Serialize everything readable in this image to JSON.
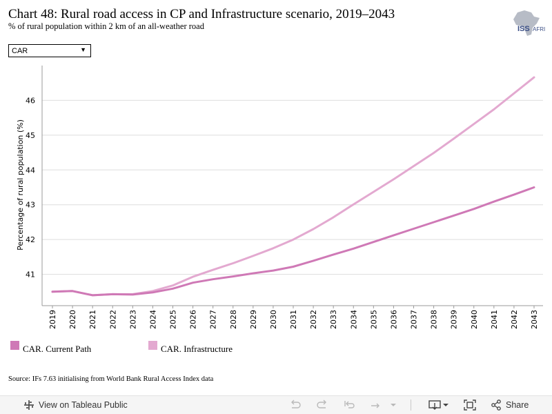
{
  "header": {
    "title": "Chart 48: Rural road access in CP and Infrastructure scenario, 2019–2043",
    "subtitle": "% of rural population within 2 km of an all-weather road",
    "logo_text": "ISS AFRICA"
  },
  "filter": {
    "selected": "CAR"
  },
  "colors": {
    "current_path": "#cf79b6",
    "infrastructure": "#e3a9d0",
    "grid": "#dedede",
    "axis": "#9a9a9a"
  },
  "chart_data": {
    "type": "line",
    "title": "Chart 48: Rural road access in CP and Infrastructure scenario, 2019–2043",
    "xlabel": "",
    "ylabel": "Percentage of rural population (%)",
    "ylim": [
      40.1,
      47.0
    ],
    "yticks": [
      41,
      42,
      43,
      44,
      45,
      46
    ],
    "grid": true,
    "legend_position": "bottom-left",
    "x": [
      "2019",
      "2020",
      "2021",
      "2022",
      "2023",
      "2024",
      "2025",
      "2026",
      "2027",
      "2028",
      "2029",
      "2030",
      "2031",
      "2032",
      "2033",
      "2034",
      "2035",
      "2036",
      "2037",
      "2038",
      "2039",
      "2040",
      "2041",
      "2042",
      "2043"
    ],
    "series": [
      {
        "name": "CAR. Current Path",
        "color": "#cf79b6",
        "values": [
          40.5,
          40.52,
          40.4,
          40.43,
          40.42,
          40.48,
          40.59,
          40.76,
          40.86,
          40.94,
          41.03,
          41.11,
          41.22,
          41.39,
          41.57,
          41.74,
          41.93,
          42.12,
          42.31,
          42.5,
          42.69,
          42.88,
          43.09,
          43.29,
          43.5
        ]
      },
      {
        "name": "CAR. Infrastructure",
        "color": "#e3a9d0",
        "values": [
          40.5,
          40.52,
          40.4,
          40.43,
          40.43,
          40.52,
          40.68,
          40.93,
          41.13,
          41.32,
          41.53,
          41.75,
          42.0,
          42.3,
          42.64,
          43.01,
          43.37,
          43.73,
          44.11,
          44.49,
          44.9,
          45.32,
          45.74,
          46.2,
          46.66
        ]
      }
    ]
  },
  "source": "Source: IFs 7.63 initialising from World Bank Rural Access Index data",
  "toolbar": {
    "view_label": "View on Tableau Public",
    "share_label": "Share"
  }
}
